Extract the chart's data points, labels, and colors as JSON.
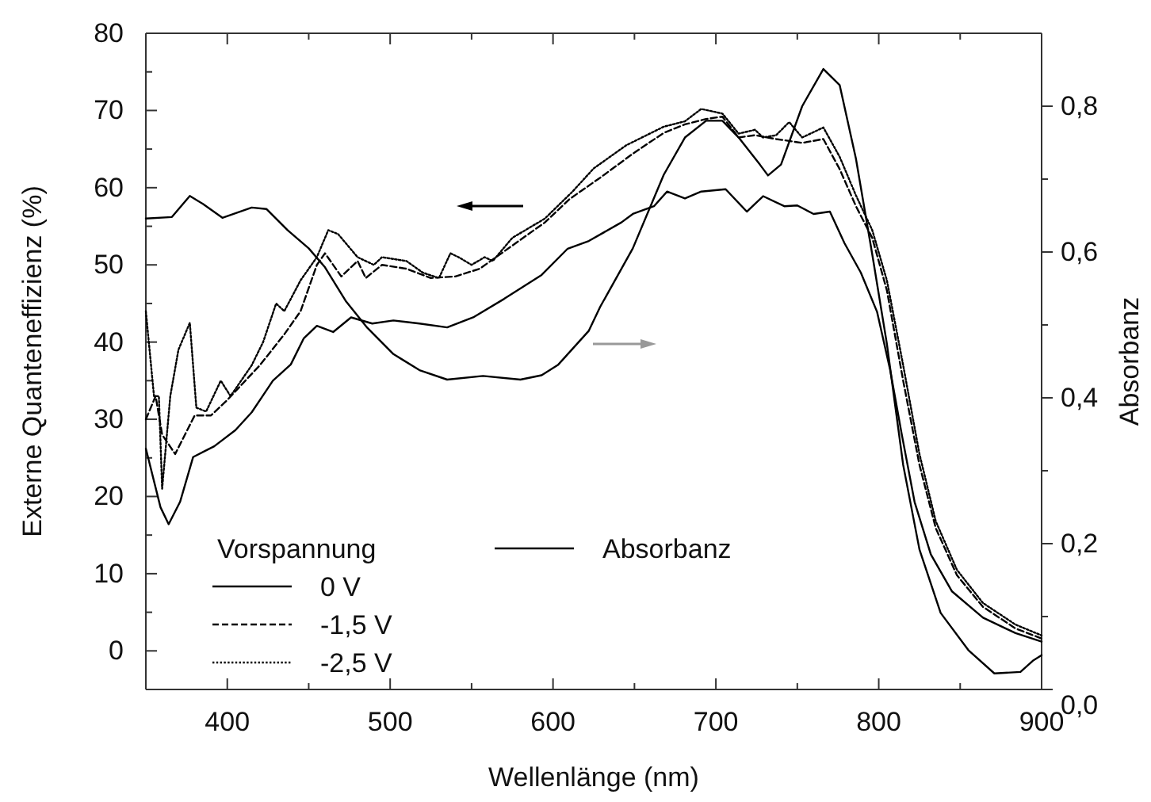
{
  "chart_data": {
    "type": "line",
    "xlabel": "Wellenlänge (nm)",
    "ylabel": "Externe Quanteneffizienz (%)",
    "y2label": "Absorbanz",
    "legend_title": "Vorspannung",
    "legend": "bottom left",
    "xlim": [
      350,
      900
    ],
    "ylim": [
      -5,
      80
    ],
    "y2lim": [
      0,
      0.9
    ],
    "xticks": [
      {
        "value": 350,
        "label": null
      },
      400,
      {
        "value": 450,
        "label": null
      },
      500,
      {
        "value": 550,
        "label": null
      },
      600,
      {
        "value": 650,
        "label": null
      },
      700,
      {
        "value": 750,
        "label": null
      },
      800,
      {
        "value": 850,
        "label": null
      },
      900
    ],
    "yticks": [
      {
        "value": -5,
        "label": null
      },
      0,
      {
        "value": 5,
        "label": null
      },
      10,
      {
        "value": 15,
        "label": null
      },
      20,
      {
        "value": 25,
        "label": null
      },
      30,
      {
        "value": 35,
        "label": null
      },
      40,
      {
        "value": 45,
        "label": null
      },
      50,
      {
        "value": 55,
        "label": null
      },
      60,
      {
        "value": 65,
        "label": null
      },
      70,
      {
        "value": 75,
        "label": null
      },
      80
    ],
    "y2ticks": [
      {
        "value": 0,
        "label": "0,0"
      },
      {
        "value": 0.1,
        "label": null
      },
      {
        "value": 0.2,
        "label": "0,2"
      },
      {
        "value": 0.3,
        "label": null
      },
      {
        "value": 0.4,
        "label": "0,4"
      },
      {
        "value": 0.5,
        "label": null
      },
      {
        "value": 0.6,
        "label": "0,6"
      },
      {
        "value": 0.7,
        "label": null
      },
      {
        "value": 0.8,
        "label": "0,8"
      }
    ],
    "series": [
      {
        "name": "0 V",
        "color": "#000000",
        "line_style": "solid",
        "x": [
          350,
          359,
          364,
          371,
          379,
          392,
          405,
          415,
          428,
          439,
          447,
          455,
          465,
          476,
          489,
          502,
          518,
          535,
          551,
          570,
          593,
          609,
          622,
          642,
          649,
          662,
          670,
          681,
          691,
          706,
          719,
          729,
          742,
          750,
          760,
          770,
          779,
          789,
          799,
          807,
          814,
          822,
          832,
          845,
          864,
          884,
          900
        ],
        "values": [
          26.2,
          18.6,
          16.4,
          19.3,
          25.1,
          26.5,
          28.6,
          30.9,
          35.0,
          37.1,
          40.5,
          42.1,
          41.3,
          43.2,
          42.4,
          42.8,
          42.4,
          41.9,
          43.2,
          45.6,
          48.7,
          52.1,
          53.1,
          55.5,
          56.6,
          57.6,
          59.5,
          58.6,
          59.5,
          59.8,
          56.9,
          58.9,
          57.6,
          57.7,
          56.6,
          56.9,
          52.8,
          49.0,
          43.9,
          36.4,
          28.2,
          19.3,
          12.5,
          7.7,
          4.3,
          2.3,
          1.2
        ]
      },
      {
        "name": "-1,5 V",
        "color": "#000000",
        "line_style": "dashed",
        "x": [
          350,
          356,
          360,
          368,
          380,
          390,
          400,
          420,
          435,
          445,
          455,
          460,
          470,
          480,
          485,
          495,
          510,
          525,
          540,
          555,
          575,
          595,
          610,
          629,
          649,
          668,
          681,
          694,
          704,
          714,
          724,
          737,
          753,
          766,
          776,
          786,
          796,
          805,
          815,
          825,
          835,
          848,
          864,
          884,
          900
        ],
        "values": [
          30,
          33,
          28,
          25.5,
          30.5,
          30.5,
          32.5,
          37,
          41,
          44,
          50,
          51.5,
          48.5,
          50.5,
          48.3,
          50,
          49.5,
          48.3,
          48.5,
          49.5,
          52.5,
          55.5,
          58.5,
          61.3,
          64.4,
          67.1,
          68.2,
          68.9,
          69.2,
          66.5,
          66.8,
          66.3,
          65.8,
          66.3,
          62.4,
          57.6,
          53.5,
          46.7,
          35.0,
          24.1,
          15.9,
          9.8,
          5.7,
          2.9,
          1.6
        ]
      },
      {
        "name": "-2,5 V",
        "color": "#000000",
        "line_style": "dotted",
        "x": [
          350,
          355,
          358,
          360,
          365,
          370,
          377,
          381,
          387,
          396,
          402,
          415,
          422,
          430,
          435,
          445,
          455,
          462,
          468,
          480,
          490,
          495,
          510,
          520,
          530,
          537,
          542,
          550,
          558,
          563,
          575,
          595,
          612,
          625,
          645,
          668,
          681,
          691,
          704,
          714,
          724,
          729,
          737,
          745,
          753,
          766,
          776,
          786,
          796,
          805,
          815,
          825,
          835,
          848,
          864,
          884,
          900
        ],
        "values": [
          44,
          33,
          33,
          21,
          33,
          39,
          42.5,
          31.5,
          31,
          35,
          33,
          37,
          40,
          45,
          44,
          48,
          51,
          54.5,
          54,
          51,
          50,
          51,
          50.5,
          49,
          48.3,
          51.5,
          51,
          50,
          51,
          50.5,
          53.5,
          56,
          59.5,
          62.5,
          65.5,
          67.9,
          68.6,
          70.2,
          69.6,
          67,
          67.5,
          66.5,
          66.8,
          68.5,
          66.5,
          67.8,
          64,
          59,
          54.5,
          48,
          37,
          25.5,
          16.8,
          10.5,
          6.2,
          3.4,
          2.0
        ]
      },
      {
        "name": "Absorbanz",
        "color": "#000000",
        "line_style": "solid",
        "axis": "y2",
        "x": [
          350,
          366,
          377,
          385,
          397,
          415,
          424,
          437,
          450,
          460,
          473,
          486,
          502,
          518,
          535,
          557,
          580,
          593,
          603,
          622,
          629,
          649,
          668,
          681,
          694,
          704,
          714,
          727,
          732,
          740,
          753,
          766,
          776,
          786,
          796,
          805,
          815,
          825,
          838,
          855,
          871,
          887,
          895,
          900
        ],
        "values": [
          0.646,
          0.648,
          0.677,
          0.666,
          0.647,
          0.661,
          0.659,
          0.63,
          0.605,
          0.579,
          0.532,
          0.496,
          0.46,
          0.438,
          0.425,
          0.43,
          0.425,
          0.431,
          0.445,
          0.492,
          0.525,
          0.605,
          0.706,
          0.757,
          0.78,
          0.78,
          0.757,
          0.72,
          0.705,
          0.72,
          0.8,
          0.851,
          0.829,
          0.728,
          0.597,
          0.474,
          0.308,
          0.192,
          0.105,
          0.054,
          0.022,
          0.024,
          0.04,
          0.047
        ]
      }
    ]
  }
}
